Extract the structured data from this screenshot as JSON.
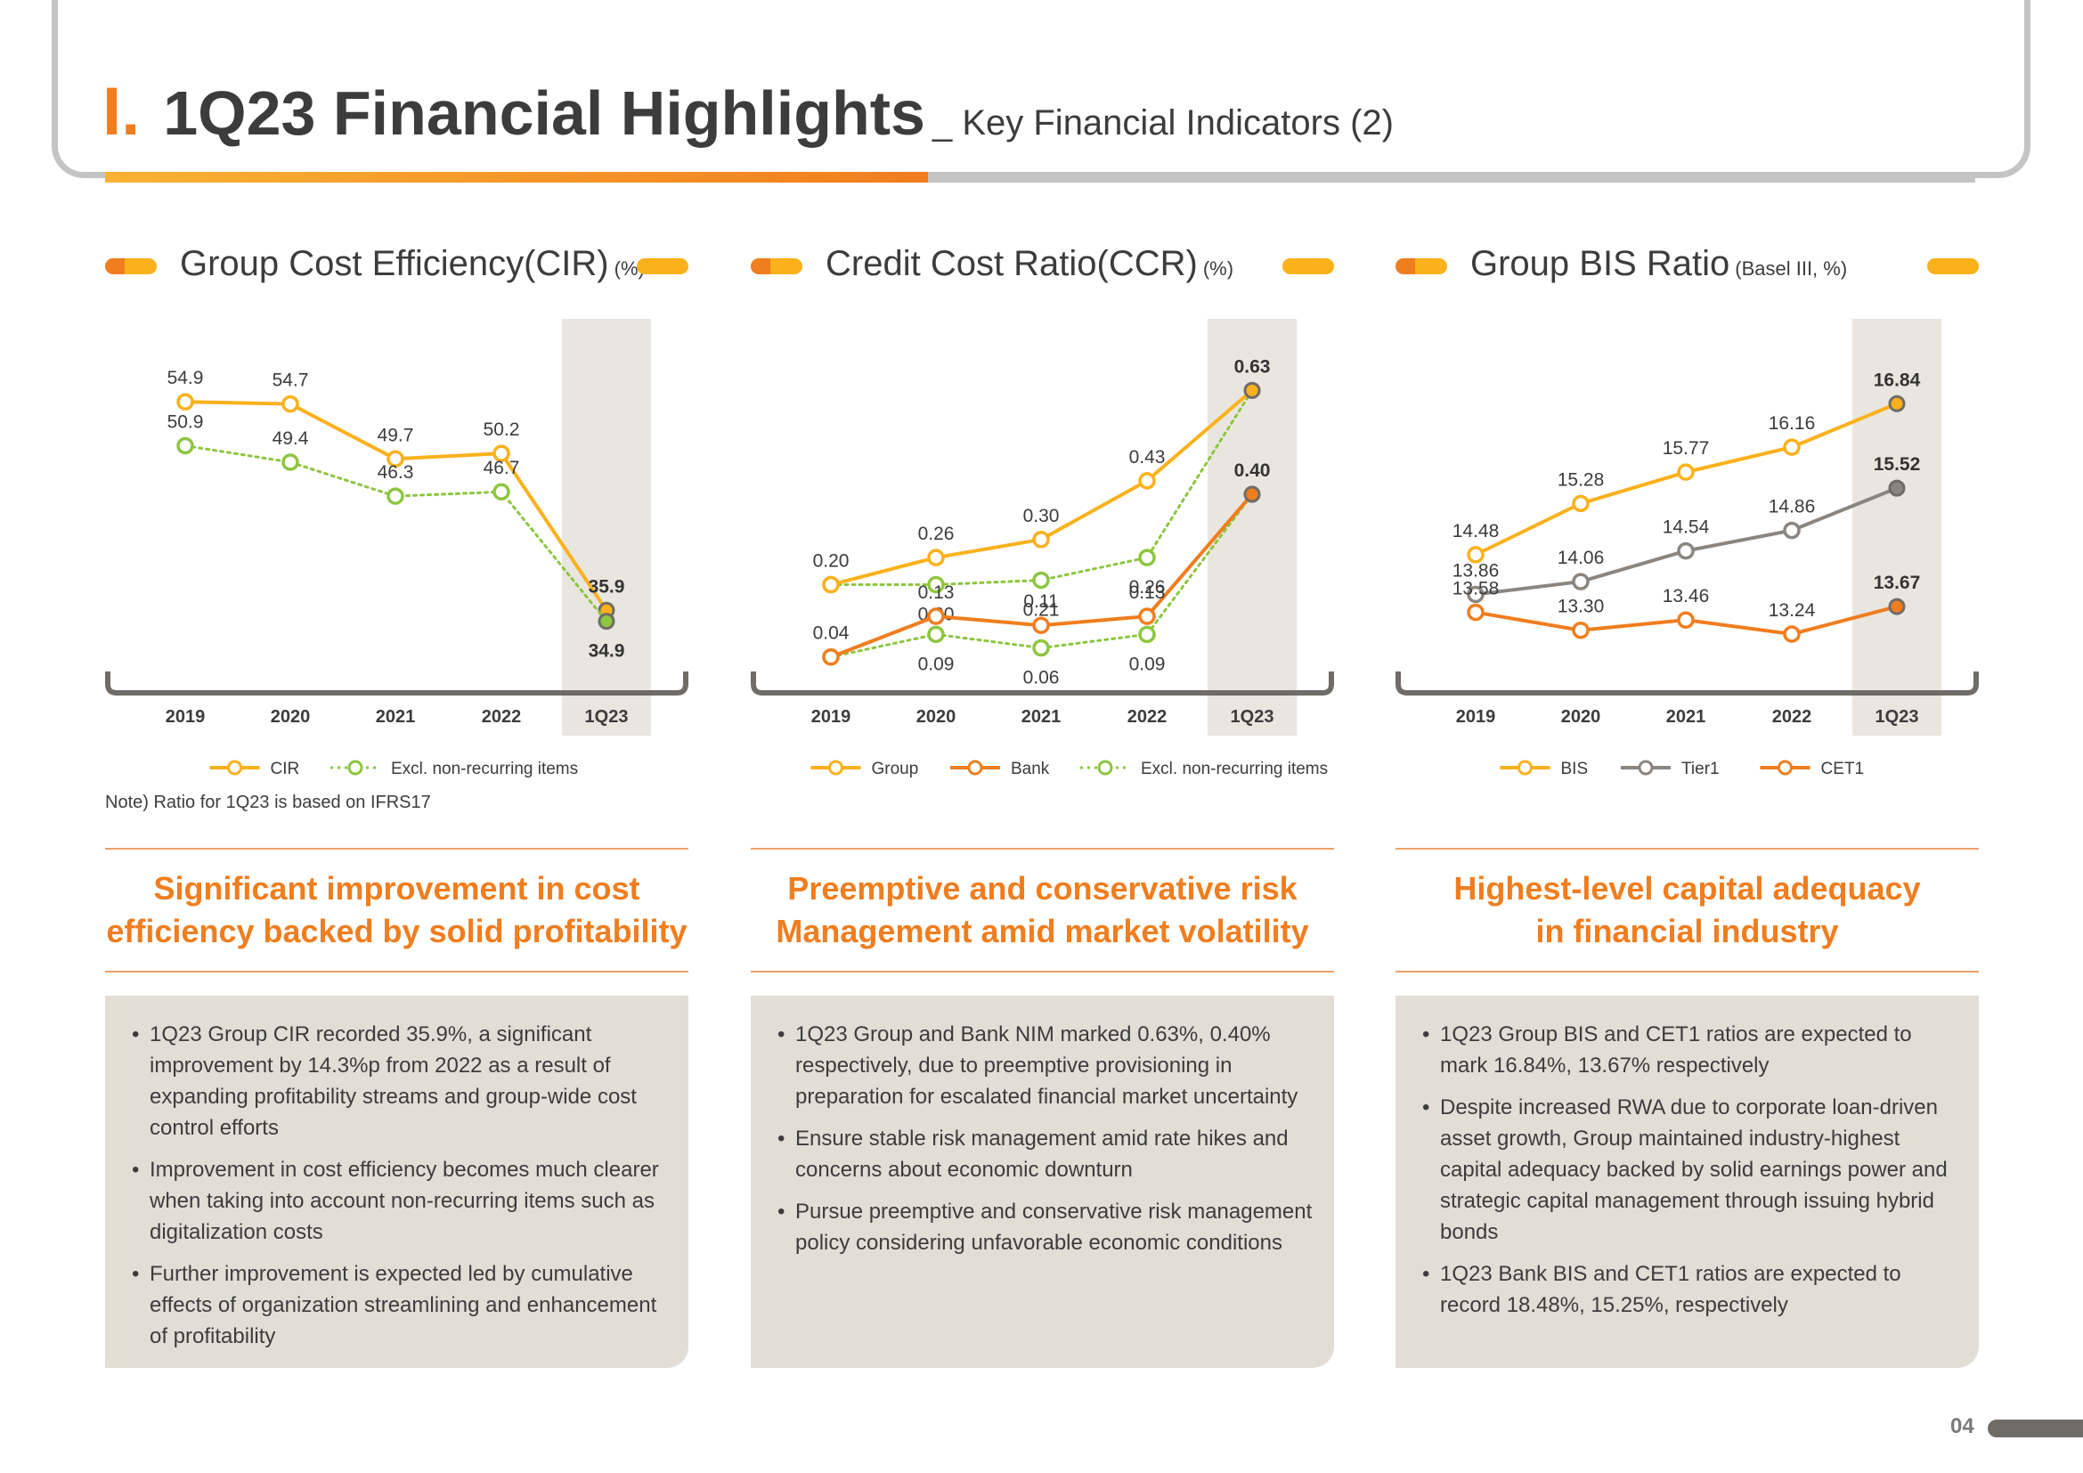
{
  "header": {
    "roman": "I.",
    "title": "1Q23 Financial Highlights",
    "subtitle": "_ Key Financial Indicators (2)"
  },
  "panels": [
    {
      "title": "Group Cost Efficiency(CIR)",
      "unit": "(%)",
      "note": "Note) Ratio for 1Q23 is based on IFRS17",
      "headline": "Significant improvement in cost\nefficiency backed by solid profitability",
      "bullets": [
        "1Q23 Group CIR recorded 35.9%, a significant improvement by 14.3%p from 2022 as a result of expanding profitability streams and group-wide cost control efforts",
        "Improvement in cost efficiency becomes much clearer when taking into account non-recurring items such as digitalization costs",
        "Further improvement is expected led by cumulative effects of organization streamlining and enhancement of profitability"
      ]
    },
    {
      "title": "Credit Cost Ratio(CCR)",
      "unit": "(%)",
      "note": "",
      "headline": "Preemptive and conservative risk\nManagement amid market volatility",
      "bullets": [
        "1Q23 Group and Bank NIM marked 0.63%, 0.40% respectively, due to preemptive provisioning in preparation for escalated financial market uncertainty",
        "Ensure stable risk management amid rate hikes and concerns about economic downturn",
        "Pursue preemptive and conservative risk management policy considering unfavorable economic conditions"
      ]
    },
    {
      "title": "Group BIS Ratio",
      "unit": "(Basel III, %)",
      "note": "",
      "headline": "Highest-level capital adequacy\nin financial industry",
      "bullets": [
        "1Q23 Group BIS and CET1 ratios are expected to mark 16.84%, 13.67% respectively",
        "Despite increased RWA due to corporate loan-driven asset growth, Group maintained industry-highest capital adequacy backed by solid earnings power and strategic capital management through issuing hybrid bonds",
        "1Q23 Bank BIS and CET1 ratios are expected to record 18.48%, 15.25%, respectively"
      ]
    }
  ],
  "page_number": "04",
  "header_progress": 0.44,
  "colors": {
    "orange": "#f07d1e",
    "yellow": "#fbb11c",
    "green": "#8dc63f",
    "gray": "#8a8580",
    "highlight": "#e9e6e0"
  },
  "chart_data": [
    {
      "type": "line",
      "title": "Group Cost Efficiency(CIR) (%)",
      "categories": [
        "2019",
        "2020",
        "2021",
        "2022",
        "1Q23"
      ],
      "highlight_category": "1Q23",
      "ylim": [
        30,
        58
      ],
      "series": [
        {
          "name": "CIR",
          "color": "#fbb11c",
          "dash": false,
          "values": [
            54.9,
            54.7,
            49.7,
            50.2,
            35.9
          ],
          "labels": [
            "54.9",
            "54.7",
            "49.7",
            "50.2",
            "35.9"
          ],
          "pos": [
            "above",
            "above",
            "above",
            "above",
            "above"
          ]
        },
        {
          "name": "Excl. non-recurring items",
          "color": "#8dc63f",
          "dash": true,
          "values": [
            50.9,
            49.4,
            46.3,
            46.7,
            34.9
          ],
          "labels": [
            "50.9",
            "49.4",
            "46.3",
            "46.7",
            "34.9"
          ],
          "pos": [
            "above",
            "above",
            "above",
            "above",
            "below"
          ]
        }
      ]
    },
    {
      "type": "line",
      "title": "Credit Cost Ratio(CCR) (%)",
      "categories": [
        "2019",
        "2020",
        "2021",
        "2022",
        "1Q23"
      ],
      "highlight_category": "1Q23",
      "ylim": [
        0,
        0.68
      ],
      "series": [
        {
          "name": "Group",
          "color": "#fbb11c",
          "dash": false,
          "values": [
            0.2,
            0.26,
            0.3,
            0.43,
            0.63
          ],
          "labels": [
            "0.20",
            "0.26",
            "0.30",
            "0.43",
            "0.63"
          ],
          "pos": [
            "above",
            "above",
            "above",
            "above",
            "above"
          ]
        },
        {
          "name": "Bank",
          "color": "#f07d1e",
          "dash": false,
          "values": [
            0.04,
            0.13,
            0.11,
            0.13,
            0.4
          ],
          "labels": [
            "0.04",
            "0.13",
            "0.11",
            "0.13",
            "0.40"
          ],
          "pos": [
            "above",
            "above",
            "above",
            "above",
            "above"
          ]
        },
        {
          "name": "Excl. non-recurring items",
          "color": "#8dc63f",
          "dash": true,
          "values": [
            0.2,
            0.2,
            0.21,
            0.26,
            0.63
          ],
          "labels": [
            "",
            "0.20",
            "0.21",
            "0.26",
            ""
          ],
          "pos": [
            "below",
            "below",
            "below",
            "below",
            "below"
          ],
          "extra": {
            "values": [
              0.04,
              0.09,
              0.06,
              0.09,
              0.4
            ],
            "labels": [
              "",
              "0.09",
              "0.06",
              "0.09",
              ""
            ]
          }
        }
      ]
    },
    {
      "type": "line",
      "title": "Group BIS Ratio (Basel III, %)",
      "categories": [
        "2019",
        "2020",
        "2021",
        "2022",
        "1Q23"
      ],
      "highlight_category": "1Q23",
      "ylim": [
        12.6,
        17.4
      ],
      "series": [
        {
          "name": "BIS",
          "color": "#fbb11c",
          "dash": false,
          "values": [
            14.48,
            15.28,
            15.77,
            16.16,
            16.84
          ],
          "labels": [
            "14.48",
            "15.28",
            "15.77",
            "16.16",
            "16.84"
          ],
          "pos": [
            "above",
            "above",
            "above",
            "above",
            "above"
          ]
        },
        {
          "name": "Tier1",
          "color": "#8a8580",
          "dash": false,
          "values": [
            13.86,
            14.06,
            14.54,
            14.86,
            15.52
          ],
          "labels": [
            "13.86",
            "14.06",
            "14.54",
            "14.86",
            "15.52"
          ],
          "pos": [
            "above",
            "above",
            "above",
            "above",
            "above"
          ]
        },
        {
          "name": "CET1",
          "color": "#f07d1e",
          "dash": false,
          "values": [
            13.58,
            13.3,
            13.46,
            13.24,
            13.67
          ],
          "labels": [
            "13.58",
            "13.30",
            "13.46",
            "13.24",
            "13.67"
          ],
          "pos": [
            "above",
            "above",
            "above",
            "above",
            "above"
          ]
        }
      ]
    }
  ]
}
